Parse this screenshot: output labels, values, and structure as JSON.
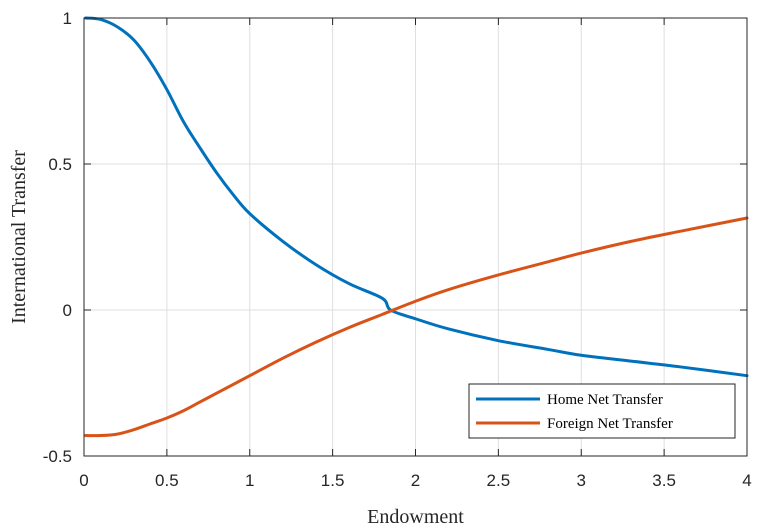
{
  "chart_data": {
    "type": "line",
    "xlabel": "Endowment",
    "ylabel": "International Transfer",
    "xlim": [
      0,
      4
    ],
    "ylim": [
      -0.5,
      1
    ],
    "x_ticks": [
      "0",
      "0.5",
      "1",
      "1.5",
      "2",
      "2.5",
      "3",
      "3.5",
      "4"
    ],
    "y_ticks": [
      "-0.5",
      "0",
      "0.5",
      "1"
    ],
    "grid": true,
    "legend_position": "bottom-right",
    "series": [
      {
        "name": "Home Net Transfer",
        "color": "#0072BD",
        "x": [
          0.01,
          0.1,
          0.2,
          0.3,
          0.4,
          0.5,
          0.6,
          0.7,
          0.8,
          0.9,
          1.0,
          1.2,
          1.4,
          1.6,
          1.8,
          1.85,
          2.0,
          2.2,
          2.5,
          2.8,
          3.0,
          3.3,
          3.6,
          4.0
        ],
        "values": [
          1.0,
          0.995,
          0.97,
          0.925,
          0.85,
          0.755,
          0.645,
          0.555,
          0.47,
          0.395,
          0.33,
          0.235,
          0.155,
          0.09,
          0.04,
          0.0,
          -0.03,
          -0.065,
          -0.105,
          -0.135,
          -0.155,
          -0.175,
          -0.195,
          -0.225
        ]
      },
      {
        "name": "Foreign Net Transfer",
        "color": "#D95319",
        "x": [
          0.01,
          0.1,
          0.2,
          0.3,
          0.4,
          0.5,
          0.6,
          0.7,
          0.8,
          1.0,
          1.2,
          1.4,
          1.6,
          1.8,
          2.0,
          2.2,
          2.5,
          2.8,
          3.0,
          3.3,
          3.6,
          4.0
        ],
        "values": [
          -0.43,
          -0.43,
          -0.425,
          -0.41,
          -0.39,
          -0.37,
          -0.345,
          -0.315,
          -0.285,
          -0.225,
          -0.165,
          -0.11,
          -0.06,
          -0.015,
          0.03,
          0.07,
          0.12,
          0.165,
          0.195,
          0.235,
          0.27,
          0.315
        ]
      }
    ]
  }
}
